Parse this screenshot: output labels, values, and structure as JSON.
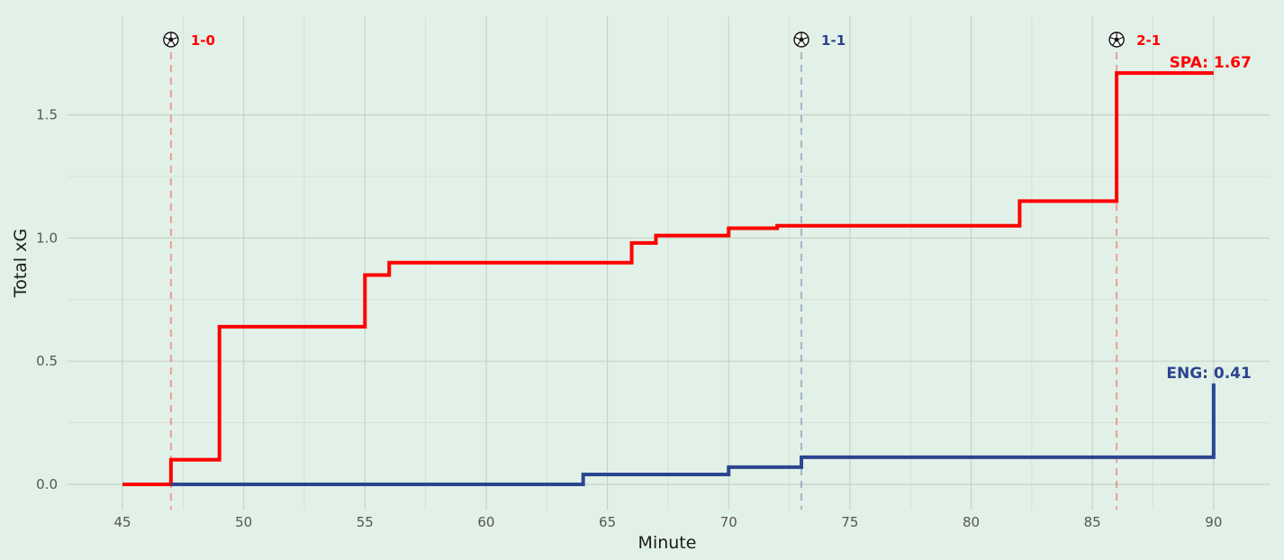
{
  "chart_data": {
    "type": "line",
    "step": true,
    "xlabel": "Minute",
    "ylabel": "Total xG",
    "xlim": [
      45,
      90
    ],
    "ylim": [
      0,
      1.75
    ],
    "x_ticks": [
      "45",
      "50",
      "55",
      "60",
      "65",
      "70",
      "75",
      "80",
      "85",
      "90"
    ],
    "y_ticks": [
      "0.0",
      "0.5",
      "1.0",
      "1.5"
    ],
    "grid": true,
    "series": [
      {
        "name": "SPA",
        "color": "#ff0000",
        "end_label": "SPA: 1.67",
        "x": [
          45,
          47,
          49,
          55,
          56,
          66,
          67,
          70,
          72,
          82,
          86,
          90
        ],
        "y": [
          0,
          0.1,
          0.64,
          0.85,
          0.9,
          0.98,
          1.01,
          1.04,
          1.05,
          1.15,
          1.67,
          1.67
        ]
      },
      {
        "name": "ENG",
        "color": "#2b4590",
        "end_label": "ENG: 0.41",
        "x": [
          47,
          64,
          70,
          73,
          90,
          90
        ],
        "y": [
          0,
          0.04,
          0.07,
          0.11,
          0.11,
          0.41
        ]
      }
    ],
    "goals": [
      {
        "minute": 47,
        "score": "1-0",
        "team": "SPA",
        "color": "#ff0000",
        "icon": "soccer-ball-icon"
      },
      {
        "minute": 73,
        "score": "1-1",
        "team": "ENG",
        "color": "#2b4590",
        "icon": "soccer-ball-icon"
      },
      {
        "minute": 86,
        "score": "2-1",
        "team": "SPA",
        "color": "#ff0000",
        "icon": "soccer-ball-icon"
      }
    ]
  }
}
